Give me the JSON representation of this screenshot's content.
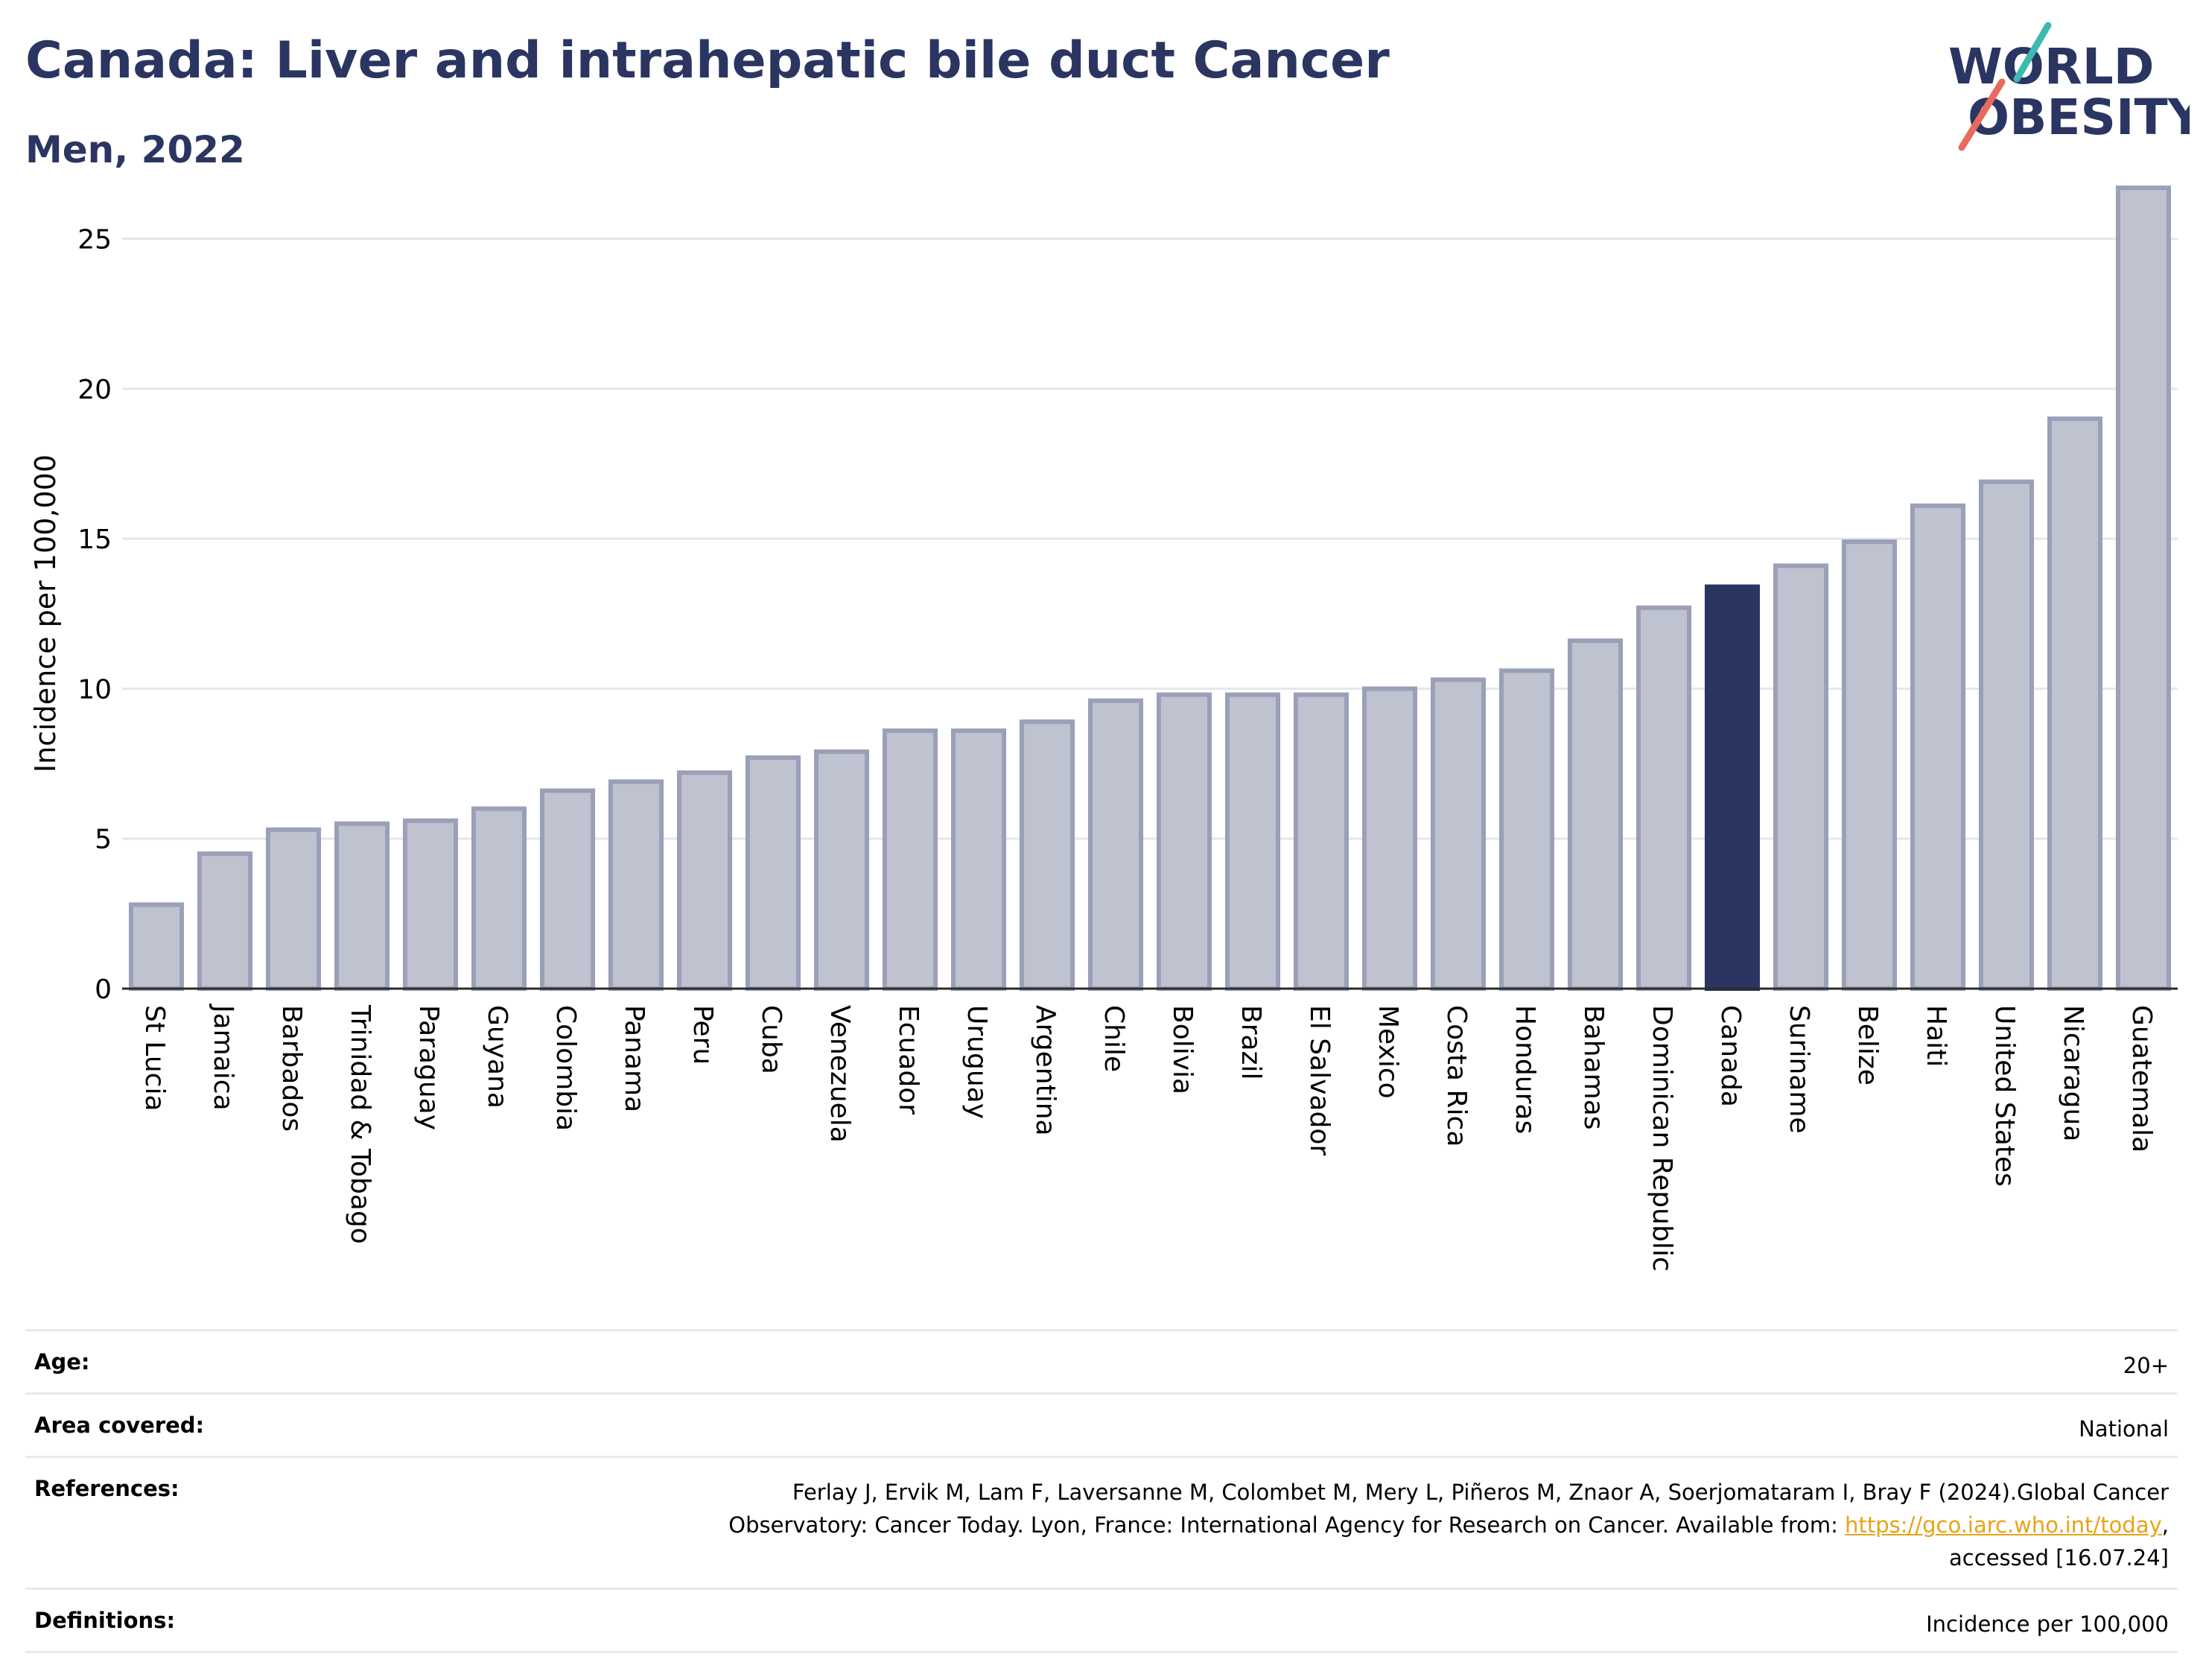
{
  "header": {
    "title": "Canada: Liver and intrahepatic bile duct Cancer",
    "subtitle": "Men, 2022"
  },
  "logo": {
    "line1": "WORLD",
    "line2": "OBESITY"
  },
  "colors": {
    "highlight": "#2b3561",
    "bar": "#bfc2cf",
    "bar_border": "#9aa0b8",
    "title": "#2b3561",
    "link": "#e8a317"
  },
  "chart_data": {
    "type": "bar",
    "title": "Canada: Liver and intrahepatic bile duct Cancer",
    "subtitle": "Men, 2022",
    "xlabel": "",
    "ylabel": "Incidence per 100,000",
    "ylim": [
      0,
      27
    ],
    "yticks": [
      0,
      5,
      10,
      15,
      20,
      25
    ],
    "grid": true,
    "highlight": "Canada",
    "categories": [
      "St Lucia",
      "Jamaica",
      "Barbados",
      "Trinidad & Tobago",
      "Paraguay",
      "Guyana",
      "Colombia",
      "Panama",
      "Peru",
      "Cuba",
      "Venezuela",
      "Ecuador",
      "Uruguay",
      "Argentina",
      "Chile",
      "Bolivia",
      "Brazil",
      "El Salvador",
      "Mexico",
      "Costa Rica",
      "Honduras",
      "Bahamas",
      "Dominican Republic",
      "Canada",
      "Suriname",
      "Belize",
      "Haiti",
      "United States",
      "Nicaragua",
      "Guatemala"
    ],
    "values": [
      2.8,
      4.5,
      5.3,
      5.5,
      5.6,
      6.0,
      6.6,
      6.9,
      7.2,
      7.7,
      7.9,
      8.6,
      8.6,
      8.9,
      9.6,
      9.8,
      9.8,
      9.8,
      10.0,
      10.3,
      10.6,
      11.6,
      12.7,
      13.4,
      14.1,
      14.9,
      16.1,
      16.9,
      19.0,
      26.7
    ]
  },
  "info": {
    "age_label": "Age:",
    "age_value": "20+",
    "area_label": "Area covered:",
    "area_value": "National",
    "references_label": "References:",
    "references_line1": "Ferlay J, Ervik M, Lam F, Laversanne M, Colombet M, Mery L, Piñeros M, Znaor A, Soerjomataram I, Bray F (2024).Global Cancer",
    "references_line2": "Observatory: Cancer Today. Lyon, France: International Agency for Research on Cancer. Available from: ",
    "references_link": "https://gco.iarc.who.int/today",
    "references_after_link": ",",
    "references_line3": "accessed [16.07.24]",
    "definitions_label": "Definitions:",
    "definitions_value": "Incidence per 100,000"
  }
}
